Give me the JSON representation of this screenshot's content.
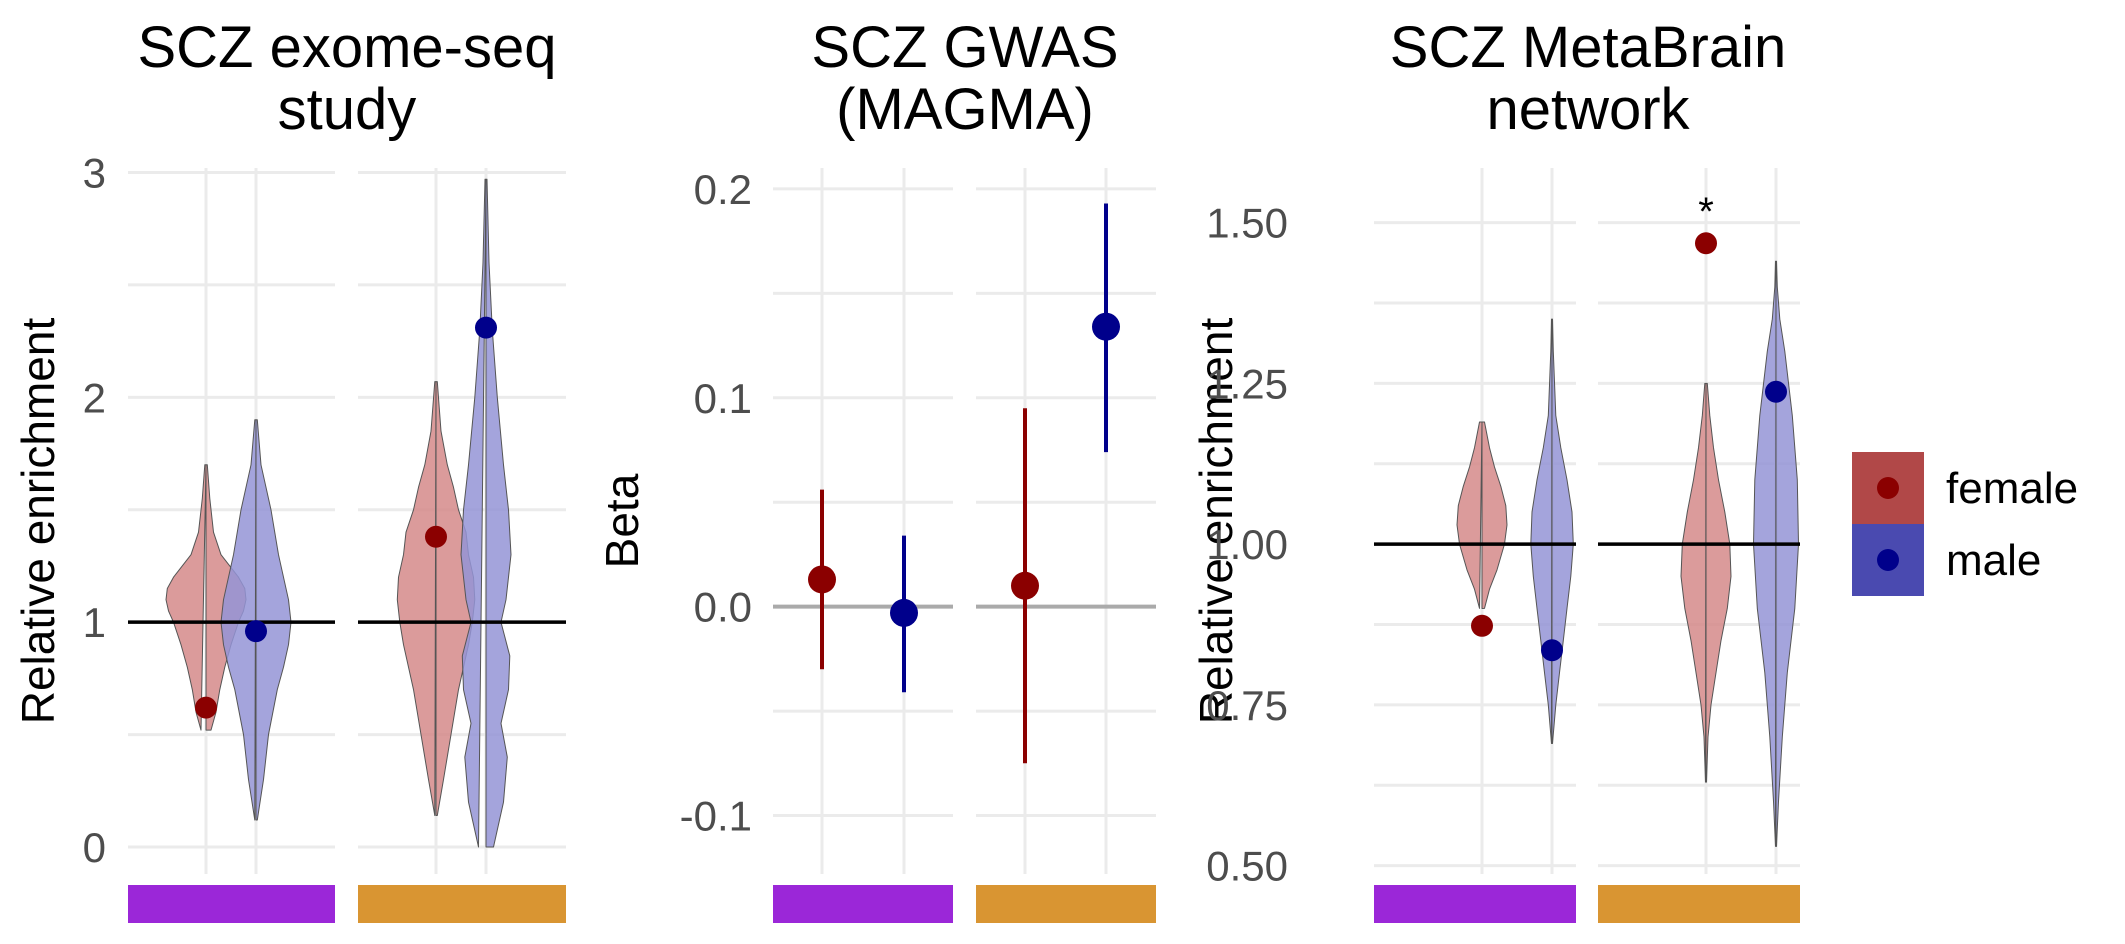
{
  "colors": {
    "female": "#8b0000",
    "male": "#00008b",
    "female_violin": "#d58a8a",
    "male_violin": "#9494d6",
    "legend_female": "#b14848",
    "legend_male": "#4a4ab0",
    "strip_1": "#9b27d8",
    "strip_2": "#d99532",
    "grid": "#ebebeb",
    "ref_line": "#000000",
    "zero_line": "#aaaaaa"
  },
  "legend": {
    "items": [
      {
        "label": "female",
        "color_key": "female"
      },
      {
        "label": "male",
        "color_key": "male"
      }
    ]
  },
  "chart_data": [
    {
      "type": "violin",
      "title": [
        "SCZ exome-seq",
        "study"
      ],
      "ylabel": "Relative enrichment",
      "ylim": [
        -0.12,
        3.02
      ],
      "yticks": [
        0,
        1,
        2,
        3
      ],
      "tick_labels": [
        "0",
        "1",
        "2",
        "3"
      ],
      "ref_line": 1,
      "ref_style": "black",
      "facets": [
        {
          "strip": "strip_1",
          "groups": [
            {
              "sex": "female",
              "point": 0.62,
              "violin": [
                [
                  0.52,
                  0.2
                ],
                [
                  0.6,
                  0.4
                ],
                [
                  0.7,
                  0.55
                ],
                [
                  0.8,
                  0.75
                ],
                [
                  0.9,
                  1.0
                ],
                [
                  1.0,
                  1.3
                ],
                [
                  1.05,
                  1.5
                ],
                [
                  1.1,
                  1.6
                ],
                [
                  1.15,
                  1.55
                ],
                [
                  1.2,
                  1.3
                ],
                [
                  1.3,
                  0.6
                ],
                [
                  1.4,
                  0.3
                ],
                [
                  1.55,
                  0.15
                ],
                [
                  1.7,
                  0.05
                ]
              ]
            },
            {
              "sex": "male",
              "point": 0.96,
              "violin": [
                [
                  0.12,
                  0.05
                ],
                [
                  0.3,
                  0.3
                ],
                [
                  0.5,
                  0.5
                ],
                [
                  0.7,
                  0.85
                ],
                [
                  0.8,
                  1.1
                ],
                [
                  0.9,
                  1.3
                ],
                [
                  1.0,
                  1.4
                ],
                [
                  1.1,
                  1.3
                ],
                [
                  1.2,
                  1.1
                ],
                [
                  1.3,
                  0.9
                ],
                [
                  1.5,
                  0.6
                ],
                [
                  1.7,
                  0.2
                ],
                [
                  1.9,
                  0.05
                ]
              ]
            }
          ]
        },
        {
          "strip": "strip_2",
          "groups": [
            {
              "sex": "female",
              "point": 1.38,
              "violin": [
                [
                  0.14,
                  0.05
                ],
                [
                  0.3,
                  0.3
                ],
                [
                  0.5,
                  0.6
                ],
                [
                  0.7,
                  0.9
                ],
                [
                  0.9,
                  1.3
                ],
                [
                  1.0,
                  1.45
                ],
                [
                  1.1,
                  1.55
                ],
                [
                  1.2,
                  1.5
                ],
                [
                  1.3,
                  1.3
                ],
                [
                  1.4,
                  1.2
                ],
                [
                  1.5,
                  0.9
                ],
                [
                  1.6,
                  0.7
                ],
                [
                  1.7,
                  0.45
                ],
                [
                  1.85,
                  0.2
                ],
                [
                  2.07,
                  0.05
                ]
              ]
            },
            {
              "sex": "male",
              "point": 2.31,
              "violin": [
                [
                  0.0,
                  0.3
                ],
                [
                  0.2,
                  0.7
                ],
                [
                  0.4,
                  0.85
                ],
                [
                  0.55,
                  0.6
                ],
                [
                  0.7,
                  0.9
                ],
                [
                  0.85,
                  0.95
                ],
                [
                  1.0,
                  0.6
                ],
                [
                  1.1,
                  0.8
                ],
                [
                  1.3,
                  1.0
                ],
                [
                  1.5,
                  0.9
                ],
                [
                  1.7,
                  0.7
                ],
                [
                  2.0,
                  0.45
                ],
                [
                  2.3,
                  0.25
                ],
                [
                  2.6,
                  0.12
                ],
                [
                  2.97,
                  0.04
                ]
              ]
            }
          ]
        }
      ]
    },
    {
      "type": "point-range",
      "title": [
        "SCZ GWAS",
        "(MAGMA)"
      ],
      "ylabel": "Beta",
      "ylim": [
        -0.128,
        0.21
      ],
      "yticks": [
        -0.1,
        0.0,
        0.1,
        0.2
      ],
      "tick_labels": [
        "-0.1",
        "0.0",
        "0.1",
        "0.2"
      ],
      "ref_line": 0,
      "ref_style": "grey",
      "facets": [
        {
          "strip": "strip_1",
          "groups": [
            {
              "sex": "female",
              "estimate": 0.013,
              "lower": -0.03,
              "upper": 0.056
            },
            {
              "sex": "male",
              "estimate": -0.003,
              "lower": -0.041,
              "upper": 0.034
            }
          ]
        },
        {
          "strip": "strip_2",
          "groups": [
            {
              "sex": "female",
              "estimate": 0.01,
              "lower": -0.075,
              "upper": 0.095
            },
            {
              "sex": "male",
              "estimate": 0.134,
              "lower": 0.074,
              "upper": 0.193
            }
          ]
        }
      ]
    },
    {
      "type": "violin",
      "title": [
        "SCZ MetaBrain",
        "network"
      ],
      "ylabel": "Relative enrichment",
      "ylim": [
        0.487,
        1.585
      ],
      "yticks": [
        0.5,
        0.75,
        1.0,
        1.25,
        1.5
      ],
      "tick_labels": [
        "0.50",
        "0.75",
        "1.00",
        "1.25",
        "1.50"
      ],
      "ref_line": 1.0,
      "ref_style": "black",
      "facets": [
        {
          "strip": "strip_1",
          "groups": [
            {
              "sex": "female",
              "point": 0.873,
              "violin": [
                [
                  0.9,
                  0.1
                ],
                [
                  0.93,
                  0.3
                ],
                [
                  0.96,
                  0.6
                ],
                [
                  1.0,
                  0.9
                ],
                [
                  1.03,
                  1.0
                ],
                [
                  1.06,
                  0.95
                ],
                [
                  1.09,
                  0.75
                ],
                [
                  1.12,
                  0.5
                ],
                [
                  1.15,
                  0.3
                ],
                [
                  1.19,
                  0.1
                ]
              ]
            },
            {
              "sex": "male",
              "point": 0.835,
              "violin": [
                [
                  0.69,
                  0.02
                ],
                [
                  0.75,
                  0.15
                ],
                [
                  0.8,
                  0.3
                ],
                [
                  0.85,
                  0.45
                ],
                [
                  0.9,
                  0.6
                ],
                [
                  0.95,
                  0.75
                ],
                [
                  1.0,
                  0.85
                ],
                [
                  1.05,
                  0.8
                ],
                [
                  1.1,
                  0.6
                ],
                [
                  1.15,
                  0.35
                ],
                [
                  1.2,
                  0.15
                ],
                [
                  1.3,
                  0.05
                ],
                [
                  1.35,
                  0.02
                ]
              ]
            }
          ]
        },
        {
          "strip": "strip_2",
          "groups": [
            {
              "sex": "female",
              "point": 1.468,
              "annotation": "*",
              "violin": [
                [
                  0.63,
                  0.02
                ],
                [
                  0.7,
                  0.08
                ],
                [
                  0.75,
                  0.2
                ],
                [
                  0.8,
                  0.4
                ],
                [
                  0.85,
                  0.6
                ],
                [
                  0.9,
                  0.85
                ],
                [
                  0.95,
                  1.0
                ],
                [
                  1.0,
                  0.95
                ],
                [
                  1.05,
                  0.75
                ],
                [
                  1.1,
                  0.5
                ],
                [
                  1.15,
                  0.3
                ],
                [
                  1.2,
                  0.15
                ],
                [
                  1.25,
                  0.05
                ]
              ]
            },
            {
              "sex": "male",
              "point": 1.237,
              "violin": [
                [
                  0.53,
                  0.02
                ],
                [
                  0.6,
                  0.1
                ],
                [
                  0.7,
                  0.25
                ],
                [
                  0.8,
                  0.45
                ],
                [
                  0.9,
                  0.75
                ],
                [
                  1.0,
                  0.9
                ],
                [
                  1.1,
                  0.85
                ],
                [
                  1.2,
                  0.65
                ],
                [
                  1.3,
                  0.35
                ],
                [
                  1.35,
                  0.15
                ],
                [
                  1.4,
                  0.05
                ],
                [
                  1.44,
                  0.02
                ]
              ]
            }
          ]
        }
      ]
    }
  ]
}
